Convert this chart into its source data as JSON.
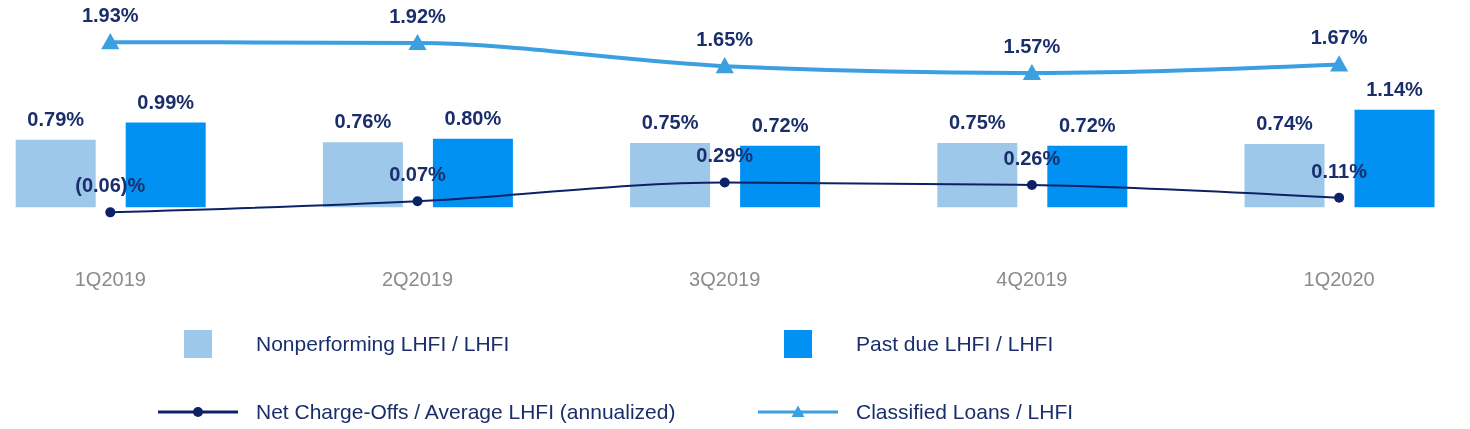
{
  "chart_data": {
    "type": "bar",
    "categories": [
      "1Q2019",
      "2Q2019",
      "3Q2019",
      "4Q2019",
      "1Q2020"
    ],
    "series": [
      {
        "name": "Nonperforming LHFI / LHFI",
        "color": "#9dc8ea",
        "values": [
          0.79,
          0.76,
          0.75,
          0.75,
          0.74
        ],
        "value_labels": [
          "0.79%",
          "0.76%",
          "0.75%",
          "0.75%",
          "0.74%"
        ]
      },
      {
        "name": "Past due LHFI / LHFI",
        "color": "#0091f2",
        "values": [
          0.99,
          0.8,
          0.72,
          0.72,
          1.14
        ],
        "value_labels": [
          "0.99%",
          "0.80%",
          "0.72%",
          "0.72%",
          "1.14%"
        ]
      },
      {
        "name": "Net Charge-Offs / Average LHFI (annualized)",
        "type": "line",
        "marker": "circle",
        "color": "#0d2266",
        "values": [
          -0.06,
          0.07,
          0.29,
          0.26,
          0.11
        ],
        "value_labels": [
          "(0.06)%",
          "0.07%",
          "0.29%",
          "0.26%",
          "0.11%"
        ]
      },
      {
        "name": "Classified Loans / LHFI",
        "type": "line",
        "marker": "triangle",
        "color": "#3ca0e0",
        "values": [
          1.93,
          1.92,
          1.65,
          1.57,
          1.67
        ],
        "value_labels": [
          "1.93%",
          "1.92%",
          "1.65%",
          "1.57%",
          "1.67%"
        ]
      }
    ],
    "tick_labels": "x",
    "grid": false,
    "legend": "bottom"
  }
}
